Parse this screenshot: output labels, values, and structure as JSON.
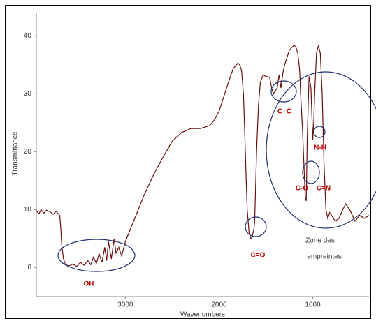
{
  "chart_data": {
    "type": "line",
    "x_label": "Wavenumbers",
    "y_label": "Transmittance",
    "xlim": [
      3950,
      400
    ],
    "ylim": [
      -5,
      44
    ],
    "xticks": [
      3000,
      2000,
      1000
    ],
    "yticks": [
      0,
      10,
      20,
      30,
      40
    ],
    "series": [
      {
        "name": "Transmittance",
        "color": "#6b1010",
        "x": [
          3950,
          3920,
          3900,
          3870,
          3840,
          3800,
          3770,
          3740,
          3700,
          3690,
          3680,
          3660,
          3640,
          3600,
          3560,
          3520,
          3480,
          3440,
          3400,
          3370,
          3340,
          3310,
          3280,
          3250,
          3220,
          3200,
          3180,
          3150,
          3120,
          3100,
          3070,
          3040,
          3000,
          2950,
          2900,
          2800,
          2700,
          2600,
          2500,
          2400,
          2300,
          2200,
          2100,
          2050,
          2000,
          1950,
          1900,
          1850,
          1800,
          1780,
          1760,
          1740,
          1730,
          1710,
          1700,
          1680,
          1660,
          1650,
          1630,
          1620,
          1600,
          1580,
          1560,
          1530,
          1500,
          1460,
          1440,
          1420,
          1400,
          1380,
          1360,
          1340,
          1320,
          1300,
          1250,
          1200,
          1180,
          1160,
          1140,
          1130,
          1110,
          1100,
          1080,
          1070,
          1060,
          1040,
          1020,
          1000,
          990,
          980,
          960,
          940,
          920,
          900,
          890,
          880,
          860,
          840,
          820,
          800,
          760,
          720,
          680,
          650,
          600,
          550,
          500,
          450,
          400
        ],
        "values": [
          9.8,
          9.3,
          10.0,
          9.4,
          9.9,
          9.6,
          9.2,
          9.7,
          9.0,
          7.0,
          4.0,
          1.5,
          0.5,
          0.3,
          0.6,
          0.2,
          0.9,
          0.4,
          1.2,
          0.5,
          1.8,
          0.7,
          2.4,
          0.9,
          3.5,
          1.2,
          4.5,
          1.5,
          5.0,
          2.5,
          3.5,
          2.0,
          4.5,
          6.5,
          8.5,
          12.5,
          16.0,
          19.0,
          21.8,
          23.3,
          24.0,
          24.0,
          24.5,
          25.5,
          27.0,
          29.5,
          32.0,
          34.3,
          35.3,
          35.0,
          34.0,
          30.0,
          25.0,
          15.0,
          10.0,
          6.0,
          5.0,
          5.2,
          6.5,
          8.0,
          20.0,
          28.0,
          32.0,
          33.2,
          33.0,
          32.8,
          31.0,
          30.0,
          30.5,
          31.0,
          33.3,
          31.0,
          33.5,
          35.0,
          37.5,
          38.4,
          38.0,
          37.0,
          34.0,
          30.0,
          24.0,
          20.0,
          12.0,
          11.5,
          22.0,
          33.0,
          31.0,
          22.0,
          25.0,
          30.0,
          37.0,
          38.3,
          37.0,
          30.0,
          24.0,
          18.0,
          10.0,
          8.5,
          9.5,
          9.0,
          8.0,
          8.5,
          10.0,
          11.0,
          9.8,
          8.0,
          9.0,
          8.5,
          9.0
        ]
      }
    ],
    "annotations": [
      "OH",
      "C=O",
      "C=C",
      "N-H",
      "C-O",
      "C=N",
      "Zone des",
      "empreintes"
    ]
  }
}
